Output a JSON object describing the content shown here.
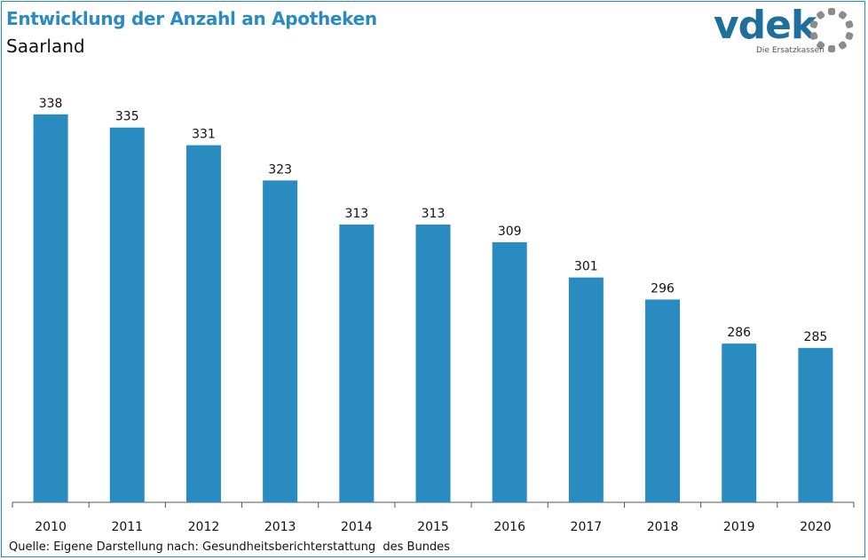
{
  "header": {
    "title": "Entwicklung der Anzahl an Apotheken",
    "subtitle": "Saarland"
  },
  "logo": {
    "wordmark": "vdek",
    "tagline": "Die Ersatzkassen",
    "icon": "dotted-ring-icon"
  },
  "footer": {
    "source": "Quelle: Eigene Darstellung nach: Gesundheitsberichterstattung  des Bundes"
  },
  "colors": {
    "bar": "#2a8bc0",
    "title": "#2a8bc0",
    "logo": "#1f6f9c",
    "logo_ring": "#8c8c8c"
  },
  "chart_data": {
    "type": "bar",
    "title": "Entwicklung der Anzahl an Apotheken",
    "subtitle": "Saarland",
    "categories": [
      "2010",
      "2011",
      "2012",
      "2013",
      "2014",
      "2015",
      "2016",
      "2017",
      "2018",
      "2019",
      "2020"
    ],
    "values": [
      338,
      335,
      331,
      323,
      313,
      313,
      309,
      301,
      296,
      286,
      285
    ],
    "data_labels": [
      "338",
      "335",
      "331",
      "323",
      "313",
      "313",
      "309",
      "301",
      "296",
      "286",
      "285"
    ],
    "xlabel": "",
    "ylabel": "",
    "ylim": [
      250,
      343
    ],
    "grid": false,
    "legend": "none"
  }
}
